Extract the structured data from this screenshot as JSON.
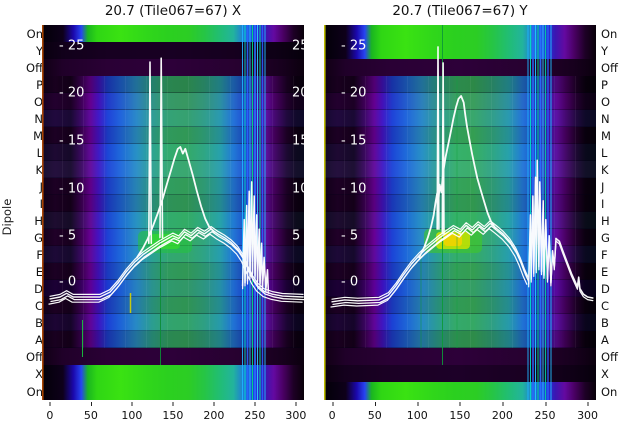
{
  "chart_data": {
    "type": "heatmap",
    "description": "Two dipole-vs-frequency waterfall heatmaps (X and Y polarization) for tile 067, with white overlaid power spectra and an inner twin axis (0-25).",
    "ylabel": "Dipole",
    "rows": [
      "On",
      "Y",
      "Off",
      "P",
      "O",
      "N",
      "M",
      "L",
      "K",
      "J",
      "I",
      "H",
      "G",
      "F",
      "E",
      "D",
      "C",
      "B",
      "A",
      "Off",
      "X",
      "On"
    ],
    "x_tick_labels": [
      "0",
      "50",
      "100",
      "150",
      "200",
      "250",
      "300"
    ],
    "overlay_tick_labels_left": [
      "- 25",
      "- 20",
      "- 15",
      "- 10",
      "- 5",
      "- 0"
    ],
    "overlay_tick_labels_right": [
      "25",
      "20",
      "15",
      "10",
      "5",
      "0"
    ],
    "overlay_axis_ticks": [
      25,
      20,
      15,
      10,
      5,
      0
    ],
    "palette_hint": [
      "#0a000d",
      "#45005e",
      "#6a0096",
      "#1e40d4",
      "#2a8cc4",
      "#35ab68",
      "#2fd614",
      "#c8e400"
    ],
    "edge_line_colors": {
      "left_panel": "#c44f00",
      "right_panel": "#dcdc00"
    },
    "panels": [
      {
        "title": "20.7 (Tile067=67) X",
        "polarization": "X",
        "x_axis_range": [
          -10,
          305
        ],
        "x_ticks": [
          0,
          50,
          100,
          150,
          200,
          250,
          300
        ],
        "active_green_rows": [
          "On (top)",
          "X",
          "On (bottom)"
        ],
        "dark_rows": [
          "Y",
          "Off (upper)",
          "Off (lower)"
        ],
        "series": {
          "bundle": [
            [
              0,
              -1.9
            ],
            [
              12,
              -1.7
            ],
            [
              20,
              -1.3
            ],
            [
              28,
              -1.7
            ],
            [
              60,
              -1.7
            ],
            [
              72,
              -1.2
            ],
            [
              82,
              -0.2
            ],
            [
              92,
              1.0
            ],
            [
              102,
              2.0
            ],
            [
              112,
              2.8
            ],
            [
              122,
              3.4
            ],
            [
              132,
              4.0
            ],
            [
              140,
              4.4
            ],
            [
              148,
              4.8
            ],
            [
              155,
              4.5
            ],
            [
              162,
              5.2
            ],
            [
              170,
              4.8
            ],
            [
              178,
              5.4
            ],
            [
              186,
              5.0
            ],
            [
              194,
              5.5
            ],
            [
              202,
              5.0
            ],
            [
              210,
              4.6
            ],
            [
              218,
              4.1
            ],
            [
              226,
              3.4
            ],
            [
              232,
              2.6
            ],
            [
              238,
              1.4
            ],
            [
              244,
              0.3
            ],
            [
              250,
              -0.5
            ],
            [
              258,
              -1.1
            ],
            [
              268,
              -1.4
            ],
            [
              280,
              -1.6
            ],
            [
              305,
              -1.7
            ]
          ],
          "peak_trace": [
            [
              105,
              2.5
            ],
            [
              112,
              3.5
            ],
            [
              118,
              4.5
            ],
            [
              124,
              5.8
            ],
            [
              130,
              7.2
            ],
            [
              136,
              8.8
            ],
            [
              141,
              10.3
            ],
            [
              146,
              11.8
            ],
            [
              150,
              13.0
            ],
            [
              154,
              14.0
            ],
            [
              157,
              14.2
            ],
            [
              160,
              13.5
            ],
            [
              163,
              14.0
            ],
            [
              167,
              12.8
            ],
            [
              172,
              11.2
            ],
            [
              177,
              9.5
            ],
            [
              182,
              7.9
            ],
            [
              187,
              6.6
            ],
            [
              192,
              5.7
            ],
            [
              198,
              5.2
            ]
          ],
          "spike_1": [
            [
              119,
              4.0
            ],
            [
              120.5,
              23.2
            ],
            [
              122,
              4.0
            ]
          ],
          "spike_2": [
            [
              132.5,
              4.6
            ],
            [
              134,
              23.6
            ],
            [
              135.5,
              4.6
            ]
          ],
          "burst": [
            [
              232,
              -0.5
            ],
            [
              234,
              6.5
            ],
            [
              235,
              -0.2
            ],
            [
              237,
              8.0
            ],
            [
              238,
              0.0
            ],
            [
              240,
              9.5
            ],
            [
              241,
              0.5
            ],
            [
              243,
              10.5
            ],
            [
              244,
              0.8
            ],
            [
              246,
              9.0
            ],
            [
              247,
              0.5
            ],
            [
              249,
              7.0
            ],
            [
              250,
              0.0
            ],
            [
              252,
              5.5
            ],
            [
              253,
              -0.3
            ],
            [
              255,
              4.0
            ],
            [
              256,
              -0.6
            ],
            [
              258,
              2.5
            ],
            [
              260,
              -0.8
            ],
            [
              262,
              1.2
            ],
            [
              263,
              -1.0
            ]
          ]
        }
      },
      {
        "title": "20.7 (Tile067=67) Y",
        "polarization": "Y",
        "x_axis_range": [
          -10,
          305
        ],
        "x_ticks": [
          0,
          50,
          100,
          150,
          200,
          250,
          300
        ],
        "active_green_rows": [
          "On (top)",
          "Y",
          "On (bottom)"
        ],
        "dark_rows": [
          "X",
          "Off (upper)",
          "Off (lower)"
        ],
        "series": {
          "bundle": [
            [
              0,
              -2.2
            ],
            [
              15,
              -2.0
            ],
            [
              30,
              -2.1
            ],
            [
              55,
              -2.0
            ],
            [
              66,
              -1.5
            ],
            [
              75,
              -0.5
            ],
            [
              84,
              0.7
            ],
            [
              93,
              1.8
            ],
            [
              102,
              2.7
            ],
            [
              110,
              3.4
            ],
            [
              118,
              4.0
            ],
            [
              126,
              4.6
            ],
            [
              134,
              5.1
            ],
            [
              142,
              5.6
            ],
            [
              150,
              5.2
            ],
            [
              157,
              5.9
            ],
            [
              164,
              5.4
            ],
            [
              171,
              6.0
            ],
            [
              178,
              5.5
            ],
            [
              185,
              6.1
            ],
            [
              192,
              5.6
            ],
            [
              200,
              5.0
            ],
            [
              208,
              4.2
            ],
            [
              215,
              3.2
            ],
            [
              220,
              2.2
            ],
            [
              225,
              1.0
            ],
            [
              229,
              0.2
            ]
          ],
          "peak_trace": [
            [
              102,
              2.5
            ],
            [
              108,
              3.6
            ],
            [
              112,
              4.6
            ],
            [
              116,
              5.8
            ],
            [
              119,
              7.0
            ],
            [
              121,
              8.3
            ],
            [
              123,
              9.3
            ],
            [
              124.5,
              8.5
            ],
            [
              126,
              10.2
            ],
            [
              128,
              9.4
            ],
            [
              130,
              11.5
            ],
            [
              133,
              13.2
            ],
            [
              136,
              14.5
            ],
            [
              139,
              15.8
            ],
            [
              142,
              17.2
            ],
            [
              145,
              18.4
            ],
            [
              148,
              19.3
            ],
            [
              151,
              19.6
            ],
            [
              154,
              18.9
            ],
            [
              156,
              17.5
            ],
            [
              158,
              16.3
            ],
            [
              161,
              14.8
            ],
            [
              164,
              13.4
            ],
            [
              167,
              12.1
            ],
            [
              170,
              10.9
            ],
            [
              174,
              9.6
            ],
            [
              178,
              8.4
            ],
            [
              182,
              7.2
            ],
            [
              186,
              6.3
            ],
            [
              191,
              5.6
            ]
          ],
          "spike_1": [
            [
              123,
              5.5
            ],
            [
              124,
              24.8
            ],
            [
              125,
              5.5
            ]
          ],
          "spike_2": [
            [
              129,
              5.0
            ],
            [
              130,
              23.1
            ],
            [
              131,
              5.0
            ]
          ],
          "burst": [
            [
              230,
              -0.3
            ],
            [
              232,
              7.0
            ],
            [
              233,
              0.2
            ],
            [
              235,
              9.0
            ],
            [
              236,
              0.8
            ],
            [
              238,
              11.0
            ],
            [
              239,
              1.2
            ],
            [
              240,
              12.8
            ],
            [
              242,
              1.5
            ],
            [
              243,
              10.5
            ],
            [
              245,
              1.0
            ],
            [
              247,
              8.5
            ],
            [
              248,
              0.6
            ],
            [
              250,
              6.5
            ],
            [
              252,
              0.2
            ],
            [
              254,
              4.8
            ],
            [
              256,
              -0.2
            ],
            [
              258,
              3.2
            ],
            [
              260,
              1.5
            ],
            [
              262,
              4.5
            ]
          ],
          "tail": [
            [
              262,
              4.5
            ],
            [
              266,
              4.2
            ],
            [
              270,
              3.2
            ],
            [
              275,
              2.0
            ],
            [
              280,
              0.8
            ],
            [
              284,
              0.0
            ],
            [
              287,
              -0.6
            ],
            [
              288.5,
              0.4
            ],
            [
              290,
              -0.8
            ],
            [
              294,
              -1.4
            ],
            [
              299,
              -1.7
            ],
            [
              305,
              -1.8
            ]
          ]
        }
      }
    ]
  }
}
